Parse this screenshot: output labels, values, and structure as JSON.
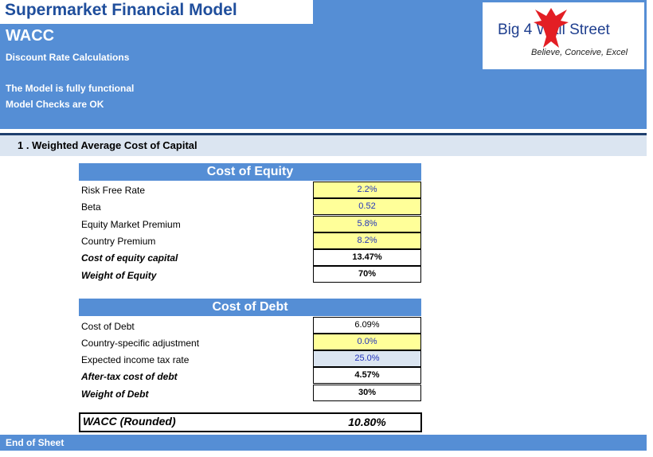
{
  "app": {
    "title": "Supermarket Financial Model"
  },
  "header": {
    "sheet_name": "WACC",
    "subtitle": "Discount Rate Calculations",
    "status_lines": [
      "The Model is fully functional",
      "Model Checks are OK"
    ]
  },
  "logo": {
    "brand": "Big 4    Wall Street",
    "tagline": "Believe, Conceive, Excel",
    "icon": "eagle-icon"
  },
  "section": {
    "title": "1 .  Weighted Average Cost of Capital"
  },
  "cost_of_equity": {
    "heading": "Cost of Equity",
    "rows": [
      {
        "label": "Risk Free Rate",
        "value": "2.2%"
      },
      {
        "label": "Beta",
        "value": "0.52"
      },
      {
        "label": "Equity Market Premium",
        "value": "5.8%"
      },
      {
        "label": "Country Premium",
        "value": "8.2%"
      },
      {
        "label": "Cost of equity capital",
        "value": "13.47%"
      },
      {
        "label": "Weight of Equity",
        "value": "70%"
      }
    ]
  },
  "cost_of_debt": {
    "heading": "Cost of Debt",
    "rows": [
      {
        "label": "Cost of Debt",
        "value": "6.09%"
      },
      {
        "label": "Country-specific adjustment",
        "value": "0.0%"
      },
      {
        "label": "Expected income tax rate",
        "value": "25.0%"
      },
      {
        "label": "After-tax cost of debt",
        "value": "4.57%"
      },
      {
        "label": "Weight of Debt",
        "value": "30%"
      }
    ]
  },
  "wacc": {
    "label": "WACC (Rounded)",
    "value": "10.80%"
  },
  "footer": {
    "text": "End of Sheet"
  },
  "colors": {
    "header_blue": "#558ed5",
    "title_blue": "#1f4e9c",
    "input_yellow": "#ffff99",
    "input_text_blue": "#2233bb",
    "section_bar": "#dbe5f1",
    "logo_red": "#e31e24"
  }
}
